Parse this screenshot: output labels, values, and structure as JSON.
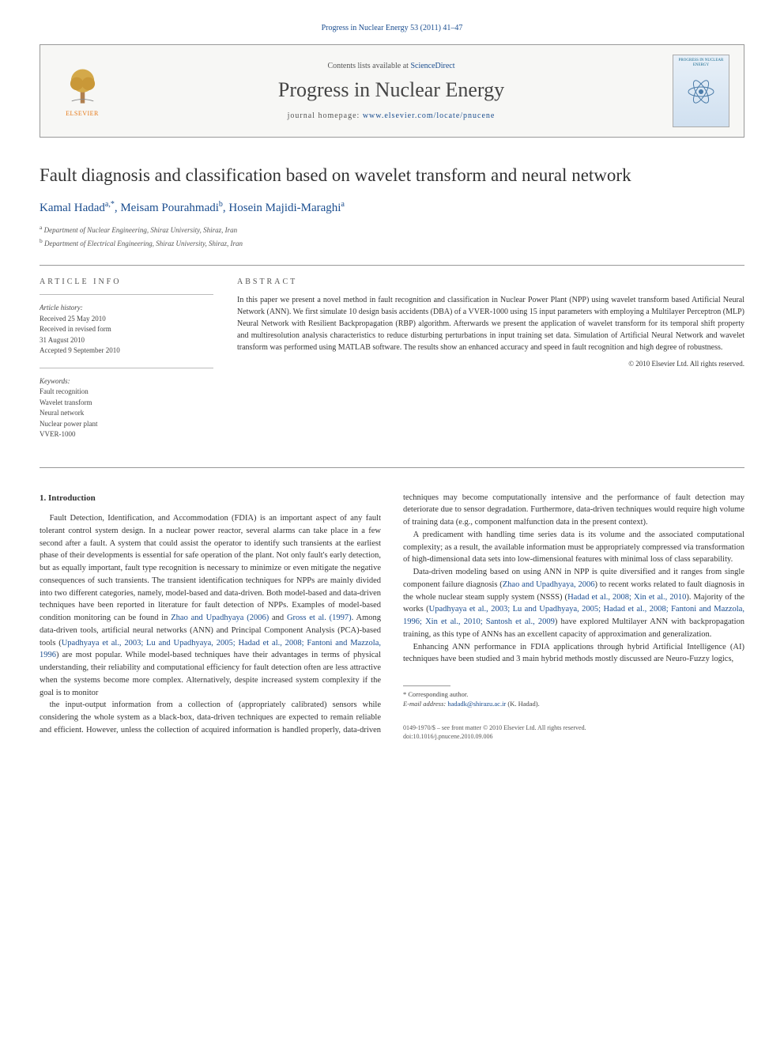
{
  "citation": "Progress in Nuclear Energy 53 (2011) 41–47",
  "header": {
    "publisher_logo_label": "ELSEVIER",
    "contents_prefix": "Contents lists available at ",
    "contents_link": "ScienceDirect",
    "journal": "Progress in Nuclear Energy",
    "homepage_prefix": "journal homepage: ",
    "homepage_url": "www.elsevier.com/locate/pnucene",
    "cover_title": "PROGRESS IN NUCLEAR ENERGY"
  },
  "title": "Fault diagnosis and classification based on wavelet transform and neural network",
  "authors_html": [
    {
      "name": "Kamal Hadad",
      "sup": "a,*"
    },
    {
      "name": "Meisam Pourahmadi",
      "sup": "b"
    },
    {
      "name": "Hosein Majidi-Maraghi",
      "sup": "a"
    }
  ],
  "affiliations": [
    {
      "sup": "a",
      "text": "Department of Nuclear Engineering, Shiraz University, Shiraz, Iran"
    },
    {
      "sup": "b",
      "text": "Department of Electrical Engineering, Shiraz University, Shiraz, Iran"
    }
  ],
  "article_info": {
    "label": "ARTICLE INFO",
    "history_heading": "Article history:",
    "history": [
      "Received 25 May 2010",
      "Received in revised form",
      "31 August 2010",
      "Accepted 9 September 2010"
    ],
    "keywords_heading": "Keywords:",
    "keywords": [
      "Fault recognition",
      "Wavelet transform",
      "Neural network",
      "Nuclear power plant",
      "VVER-1000"
    ]
  },
  "abstract": {
    "label": "ABSTRACT",
    "text": "In this paper we present a novel method in fault recognition and classification in Nuclear Power Plant (NPP) using wavelet transform based Artificial Neural Network (ANN). We first simulate 10 design basis accidents (DBA) of a VVER-1000 using 15 input parameters with employing a Multilayer Perceptron (MLP) Neural Network with Resilient Backpropagation (RBP) algorithm. Afterwards we present the application of wavelet transform for its temporal shift property and multiresolution analysis characteristics to reduce disturbing perturbations in input training set data. Simulation of Artificial Neural Network and wavelet transform was performed using MATLAB software. The results show an enhanced accuracy and speed in fault recognition and high degree of robustness.",
    "copyright": "© 2010 Elsevier Ltd. All rights reserved."
  },
  "body": {
    "heading": "1. Introduction",
    "paragraphs": [
      "Fault Detection, Identification, and Accommodation (FDIA) is an important aspect of any fault tolerant control system design. In a nuclear power reactor, several alarms can take place in a few second after a fault. A system that could assist the operator to identify such transients at the earliest phase of their developments is essential for safe operation of the plant. Not only fault's early detection, but as equally important, fault type recognition is necessary to minimize or even mitigate the negative consequences of such transients. The transient identification techniques for NPPs are mainly divided into two different categories, namely, model-based and data-driven. Both model-based and data-driven techniques have been reported in literature for fault detection of NPPs. Examples of model-based condition monitoring can be found in <span class=\"ref-link\">Zhao and Upadhyaya (2006)</span> and <span class=\"ref-link\">Gross et al. (1997)</span>. Among data-driven tools, artificial neural networks (ANN) and Principal Component Analysis (PCA)-based tools (<span class=\"ref-link\">Upadhyaya et al., 2003; Lu and Upadhyaya, 2005; Hadad et al., 2008; Fantoni and Mazzola, 1996</span>) are most popular. While model-based techniques have their advantages in terms of physical understanding, their reliability and computational efficiency for fault detection often are less attractive when the systems become more complex. Alternatively, despite increased system complexity if the goal is to monitor",
      "the input-output information from a collection of (appropriately calibrated) sensors while considering the whole system as a black-box, data-driven techniques are expected to remain reliable and efficient. However, unless the collection of acquired information is handled properly, data-driven techniques may become computationally intensive and the performance of fault detection may deteriorate due to sensor degradation. Furthermore, data-driven techniques would require high volume of training data (e.g., component malfunction data in the present context).",
      "A predicament with handling time series data is its volume and the associated computational complexity; as a result, the available information must be appropriately compressed via transformation of high-dimensional data sets into low-dimensional features with minimal loss of class separability.",
      "Data-driven modeling based on using ANN in NPP is quite diversified and it ranges from single component failure diagnosis (<span class=\"ref-link\">Zhao and Upadhyaya, 2006</span>) to recent works related to fault diagnosis in the whole nuclear steam supply system (NSSS) (<span class=\"ref-link\">Hadad et al., 2008; Xin et al., 2010</span>). Majority of the works (<span class=\"ref-link\">Upadhyaya et al., 2003; Lu and Upadhyaya, 2005; Hadad et al., 2008; Fantoni and Mazzola, 1996; Xin et al., 2010; Santosh et al., 2009</span>) have explored Multilayer ANN with backpropagation training, as this type of ANNs has an excellent capacity of approximation and generalization.",
      "Enhancing ANN performance in FDIA applications through hybrid Artificial Intelligence (AI) techniques have been studied and 3 main hybrid methods mostly discussed are Neuro-Fuzzy logics,"
    ]
  },
  "footnote": {
    "corr": "* Corresponding author.",
    "email_label": "E-mail address:",
    "email": "hadadk@shirazu.ac.ir",
    "email_name": "(K. Hadad)."
  },
  "footer": {
    "issn_line": "0149-1970/$ – see front matter © 2010 Elsevier Ltd. All rights reserved.",
    "doi_line": "doi:10.1016/j.pnucene.2010.09.006"
  },
  "colors": {
    "link": "#1a4d8f",
    "elsevier_orange": "#e67817",
    "text": "#333333",
    "border": "#999999"
  }
}
